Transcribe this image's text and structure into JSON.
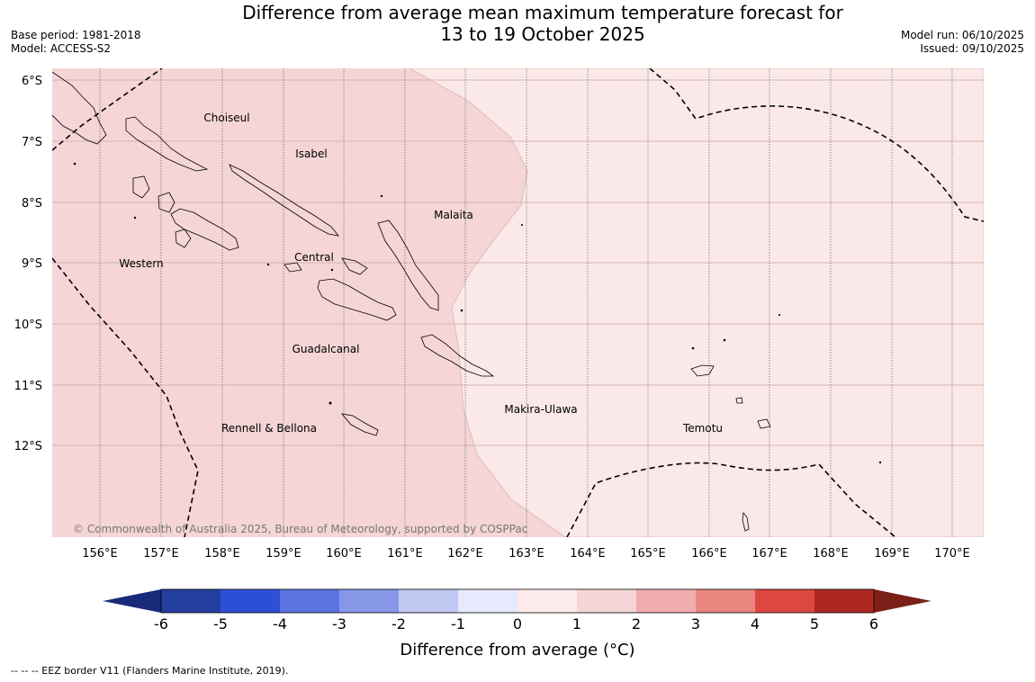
{
  "title": {
    "line1": "Difference from average mean maximum temperature forecast for",
    "line2": "13 to 19 October 2025"
  },
  "meta_left": {
    "base_period": "Base period: 1981-2018",
    "model": "Model: ACCESS-S2"
  },
  "meta_right": {
    "model_run": "Model run: 06/10/2025",
    "issued": "Issued: 09/10/2025"
  },
  "map": {
    "lat_labels": [
      "6°S",
      "7°S",
      "8°S",
      "9°S",
      "10°S",
      "11°S",
      "12°S"
    ],
    "lon_labels": [
      "156°E",
      "157°E",
      "158°E",
      "159°E",
      "160°E",
      "161°E",
      "162°E",
      "163°E",
      "164°E",
      "165°E",
      "166°E",
      "167°E",
      "168°E",
      "169°E",
      "170°E"
    ],
    "regions": {
      "choiseul": "Choiseul",
      "isabel": "Isabel",
      "malaita": "Malaita",
      "western": "Western",
      "central": "Central",
      "guadalcanal": "Guadalcanal",
      "makira": "Makira-Ulawa",
      "rennell": "Rennell & Bellona",
      "temotu": "Temotu"
    },
    "copyright": "© Commonwealth of Australia 2025, Bureau of Meteorology, supported by COSPPac",
    "anomaly_classes": {
      "west": "1 to 2 °C",
      "east": "0 to 1 °C"
    },
    "colors": {
      "west": "#f5d5d5",
      "east": "#fbe9e9"
    }
  },
  "colorbar": {
    "ticks": [
      "-6",
      "-5",
      "-4",
      "-3",
      "-2",
      "-1",
      "0",
      "1",
      "2",
      "3",
      "4",
      "5",
      "6"
    ],
    "colors": [
      "#233e9e",
      "#2d4fd6",
      "#5a74e2",
      "#8797e8",
      "#c0c8f2",
      "#e7eafc",
      "#fcebeb",
      "#f5d5d5",
      "#efadad",
      "#e8877f",
      "#dc483f",
      "#ad2821"
    ],
    "under_color": "#1a2a7a",
    "over_color": "#7a2018",
    "title": "Difference from average (°C)"
  },
  "footnote": "--  --  -- EEZ border V11 (Flanders Marine Institute, 2019)."
}
